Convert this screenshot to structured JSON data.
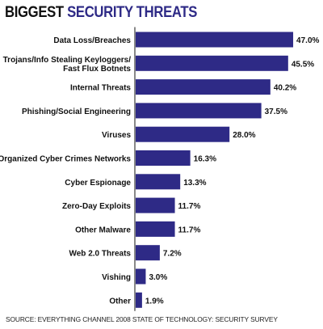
{
  "chart_data": {
    "type": "bar",
    "orientation": "horizontal",
    "title_part1": "BIGGEST",
    "title_part2": "SECURITY THREATS",
    "categories": [
      [
        "Data Loss/Breaches"
      ],
      [
        "Trojans/Info Stealing Keyloggers/",
        "Fast Flux Botnets"
      ],
      [
        "Internal Threats"
      ],
      [
        "Phishing/Social Engineering"
      ],
      [
        "Viruses"
      ],
      [
        "Organized Cyber Crimes Networks"
      ],
      [
        "Cyber Espionage"
      ],
      [
        "Zero-Day Exploits"
      ],
      [
        "Other Malware"
      ],
      [
        "Web 2.0 Threats"
      ],
      [
        "Vishing"
      ],
      [
        "Other"
      ]
    ],
    "values": [
      47.0,
      45.5,
      40.2,
      37.5,
      28.0,
      16.3,
      13.3,
      11.7,
      11.7,
      7.2,
      3.0,
      1.9
    ],
    "value_labels": [
      "47.0%",
      "45.5%",
      "40.2%",
      "37.5%",
      "28.0%",
      "16.3%",
      "13.3%",
      "11.7%",
      "11.7%",
      "7.2%",
      "3.0%",
      "1.9%"
    ],
    "unit": "%",
    "grid": false,
    "bar_color": "#2e2a86",
    "source": "SOURCE: EVERYTHING CHANNEL 2008 STATE OF TECHNOLOGY: SECURITY SURVEY"
  }
}
